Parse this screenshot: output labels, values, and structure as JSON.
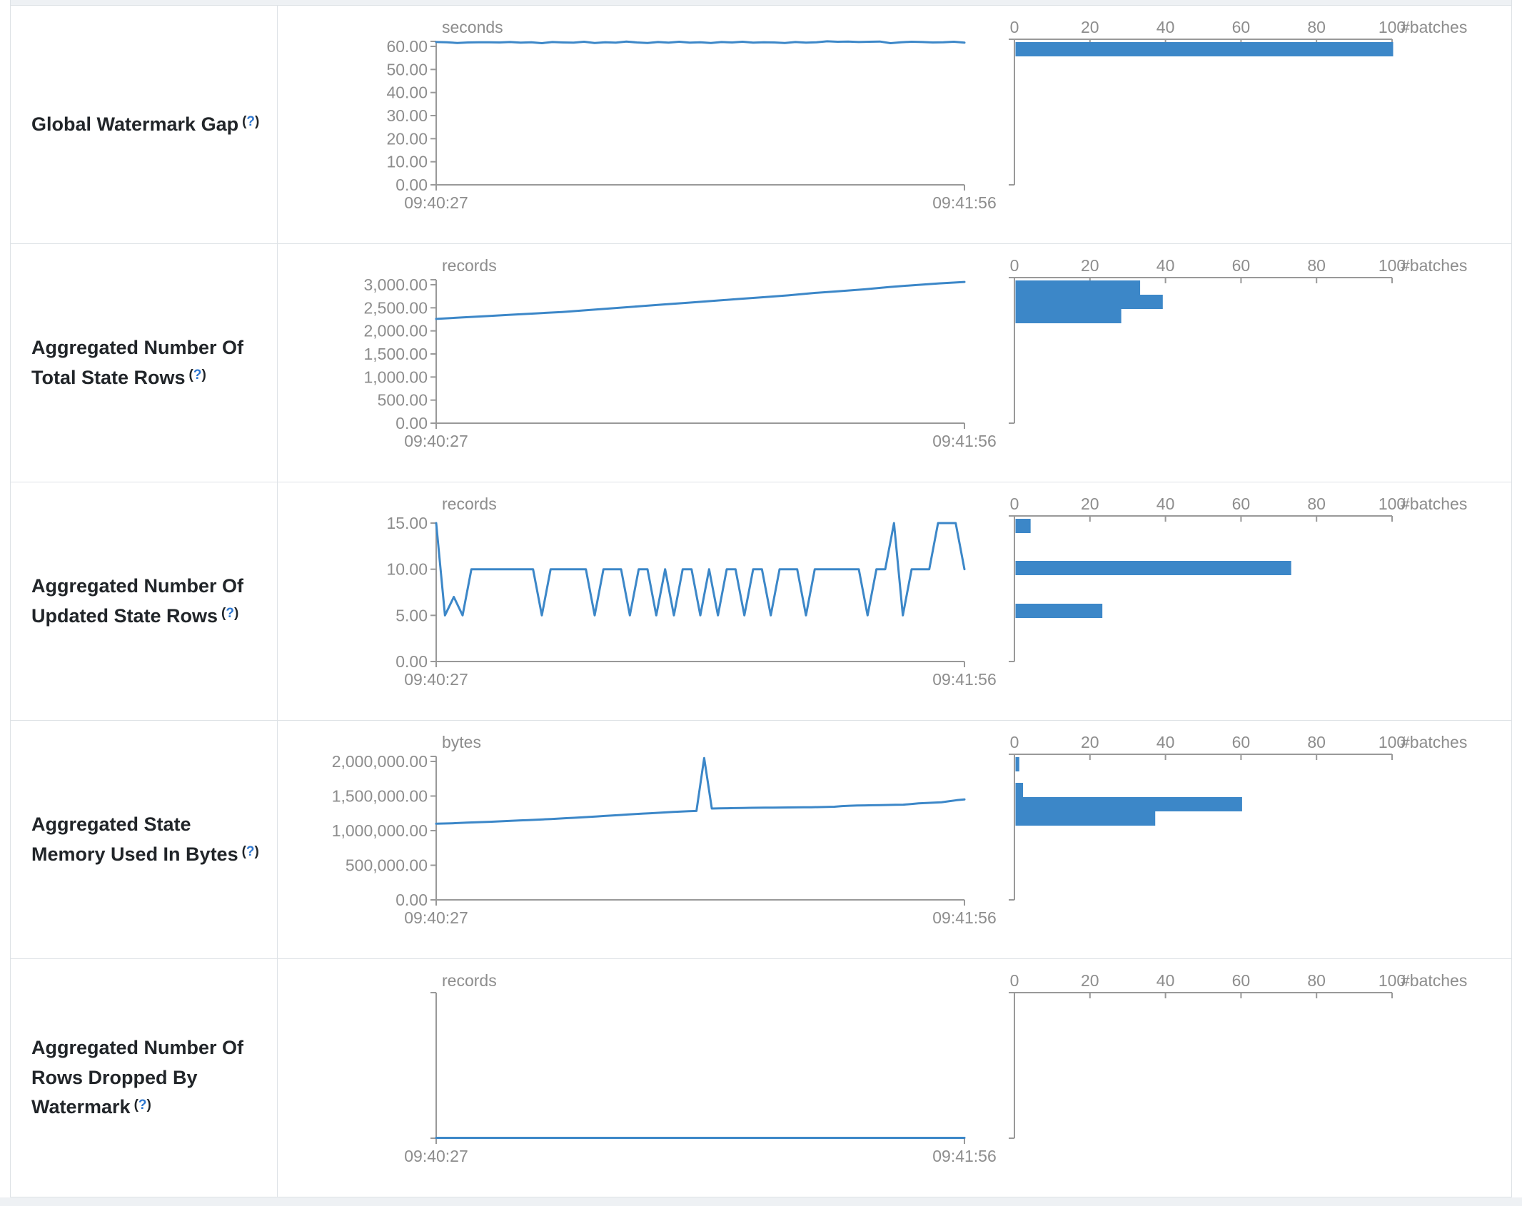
{
  "colors": {
    "accent": "#3c87c8",
    "axis_line": "#999999",
    "axis_text": "#8d8d8d",
    "title_text": "#212529",
    "help_link": "#2e77d0",
    "border": "#dee2e6",
    "page_strip": "#eef1f4"
  },
  "help": {
    "open": "(",
    "q": "?",
    "close": ")"
  },
  "chart_data": [
    {
      "metric": "Global Watermark Gap",
      "timeline": {
        "type": "line",
        "unit": "seconds",
        "x_start": "09:40:27",
        "x_end": "09:41:56",
        "y_ticks": [
          "60.00",
          "50.00",
          "40.00",
          "30.00",
          "20.00",
          "10.00",
          "0.00"
        ],
        "y_axis_max": 60,
        "overshoot_tick": true,
        "values": [
          61.9,
          61.8,
          61.5,
          61.7,
          61.8,
          61.8,
          61.7,
          61.9,
          61.6,
          61.8,
          61.4,
          61.9,
          61.7,
          61.6,
          62.0,
          61.5,
          61.8,
          61.6,
          62.1,
          61.7,
          61.5,
          61.9,
          61.6,
          62.0,
          61.6,
          61.8,
          61.5,
          61.9,
          61.7,
          62.0,
          61.6,
          61.8,
          61.7,
          61.5,
          61.9,
          61.6,
          61.8,
          62.2,
          62.0,
          62.1,
          61.9,
          62.0,
          62.1,
          61.4,
          61.8,
          62.0,
          61.9,
          61.7,
          61.8,
          62.0,
          61.6
        ]
      },
      "histogram": {
        "type": "bar",
        "x_ticks": [
          0,
          20,
          40,
          60,
          80,
          100
        ],
        "x_label": "#batches",
        "bars": [
          {
            "batches": 100,
            "y": 51
          }
        ]
      }
    },
    {
      "metric": "Aggregated Number Of Total State Rows",
      "timeline": {
        "type": "line",
        "unit": "records",
        "x_start": "09:40:27",
        "x_end": "09:41:56",
        "y_ticks": [
          "3,000.00",
          "2,500.00",
          "2,000.00",
          "1,500.00",
          "1,000.00",
          "500.00",
          "0.00"
        ],
        "y_axis_max": 3000,
        "overshoot_tick": true,
        "values": [
          2260,
          2290,
          2320,
          2350,
          2380,
          2410,
          2450,
          2490,
          2530,
          2570,
          2610,
          2650,
          2690,
          2730,
          2770,
          2820,
          2860,
          2900,
          2950,
          2990,
          3030,
          3060
        ]
      },
      "histogram": {
        "type": "bar",
        "x_ticks": [
          0,
          20,
          40,
          60,
          80,
          100
        ],
        "x_label": "#batches",
        "bars": [
          {
            "batches": 33,
            "y": 51
          },
          {
            "batches": 39,
            "y": 71
          },
          {
            "batches": 28,
            "y": 91
          }
        ]
      }
    },
    {
      "metric": "Aggregated Number Of Updated State Rows",
      "timeline": {
        "type": "line",
        "unit": "records",
        "x_start": "09:40:27",
        "x_end": "09:41:56",
        "y_ticks": [
          "15.00",
          "10.00",
          "5.00",
          "0.00"
        ],
        "y_axis_max": 15,
        "overshoot_tick": false,
        "values": [
          15,
          5,
          7,
          5,
          10,
          10,
          10,
          10,
          10,
          10,
          10,
          10,
          5,
          10,
          10,
          10,
          10,
          10,
          5,
          10,
          10,
          10,
          5,
          10,
          10,
          5,
          10,
          5,
          10,
          10,
          5,
          10,
          5,
          10,
          10,
          5,
          10,
          10,
          5,
          10,
          10,
          10,
          5,
          10,
          10,
          10,
          10,
          10,
          10,
          5,
          10,
          10,
          15,
          5,
          10,
          10,
          10,
          15,
          15,
          15,
          10
        ]
      },
      "histogram": {
        "type": "bar",
        "x_ticks": [
          0,
          20,
          40,
          60,
          80,
          100
        ],
        "x_label": "#batches",
        "bars": [
          {
            "batches": 4,
            "y": 51
          },
          {
            "batches": 73,
            "y": 110
          },
          {
            "batches": 23,
            "y": 170
          }
        ]
      }
    },
    {
      "metric": "Aggregated State Memory Used In Bytes",
      "timeline": {
        "type": "line",
        "unit": "bytes",
        "x_start": "09:40:27",
        "x_end": "09:41:56",
        "y_ticks": [
          "2,000,000.00",
          "1,500,000.00",
          "1,000,000.00",
          "500,000.00",
          "0.00"
        ],
        "y_axis_max": 2000000,
        "overshoot_tick": true,
        "values": [
          1100000,
          1103000,
          1106000,
          1110000,
          1115000,
          1120000,
          1124000,
          1128000,
          1133000,
          1138000,
          1143000,
          1148000,
          1153000,
          1158000,
          1163000,
          1168000,
          1174000,
          1180000,
          1186000,
          1192000,
          1198000,
          1205000,
          1212000,
          1219000,
          1226000,
          1233000,
          1240000,
          1246000,
          1252000,
          1258000,
          1264000,
          1270000,
          1275000,
          1280000,
          1285000,
          2050000,
          1320000,
          1322000,
          1324000,
          1326000,
          1328000,
          1330000,
          1331000,
          1332000,
          1333000,
          1334000,
          1335000,
          1336000,
          1337000,
          1338000,
          1340000,
          1342000,
          1345000,
          1355000,
          1360000,
          1363000,
          1365000,
          1367000,
          1369000,
          1371000,
          1373000,
          1375000,
          1385000,
          1395000,
          1400000,
          1405000,
          1410000,
          1425000,
          1440000,
          1450000
        ]
      },
      "histogram": {
        "type": "bar",
        "x_ticks": [
          0,
          20,
          40,
          60,
          80,
          100
        ],
        "x_label": "#batches",
        "bars": [
          {
            "batches": 1,
            "y": 51
          },
          {
            "batches": 2,
            "y": 87
          },
          {
            "batches": 60,
            "y": 107
          },
          {
            "batches": 37,
            "y": 127
          }
        ]
      }
    },
    {
      "metric": "Aggregated Number Of Rows Dropped By Watermark",
      "timeline": {
        "type": "line",
        "unit": "records",
        "x_start": "09:40:27",
        "x_end": "09:41:56",
        "y_ticks": [],
        "y_axis_max": null,
        "overshoot_tick": false,
        "values": [
          0,
          0
        ]
      },
      "histogram": {
        "type": "bar",
        "x_ticks": [
          0,
          20,
          40,
          60,
          80,
          100
        ],
        "x_label": "#batches",
        "bars": []
      }
    }
  ]
}
